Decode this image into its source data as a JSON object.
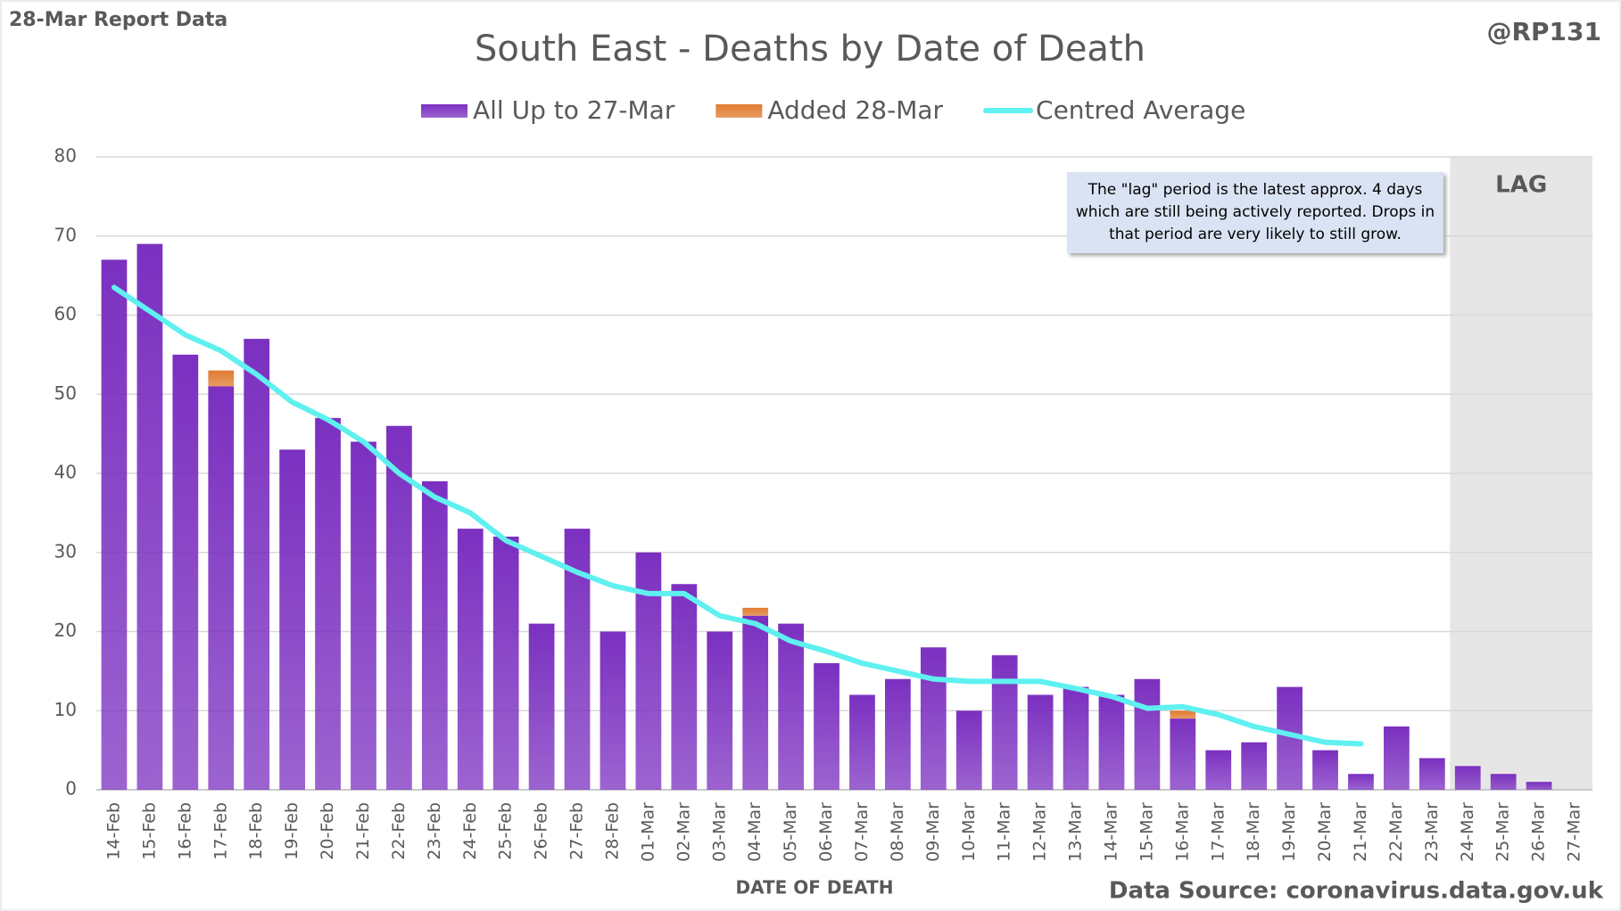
{
  "chart_data": {
    "type": "bar",
    "report_label": "28-Mar Report Data",
    "handle": "@RP131",
    "title": "South East - Deaths by Date of Death",
    "x_label": "DATE OF DEATH",
    "source": "Data Source: coronavirus.data.gov.uk",
    "annotation": "The \"lag\" period is the latest approx. 4 days which are still being actively reported. Drops in that period are very likely to still grow.",
    "lag_label": "LAG",
    "lag_start": "24-Mar",
    "categories": [
      "14-Feb",
      "15-Feb",
      "16-Feb",
      "17-Feb",
      "18-Feb",
      "19-Feb",
      "20-Feb",
      "21-Feb",
      "22-Feb",
      "23-Feb",
      "24-Feb",
      "25-Feb",
      "26-Feb",
      "27-Feb",
      "28-Feb",
      "01-Mar",
      "02-Mar",
      "03-Mar",
      "04-Mar",
      "05-Mar",
      "06-Mar",
      "07-Mar",
      "08-Mar",
      "09-Mar",
      "10-Mar",
      "11-Mar",
      "12-Mar",
      "13-Mar",
      "14-Mar",
      "15-Mar",
      "16-Mar",
      "17-Mar",
      "18-Mar",
      "19-Mar",
      "20-Mar",
      "21-Mar",
      "22-Mar",
      "23-Mar",
      "24-Mar",
      "25-Mar",
      "26-Mar",
      "27-Mar"
    ],
    "series": [
      {
        "name": "All Up to 27-Mar",
        "color": "#7b30c0",
        "values": [
          67,
          69,
          55,
          51,
          57,
          43,
          47,
          44,
          46,
          39,
          33,
          32,
          21,
          33,
          20,
          30,
          26,
          20,
          22,
          21,
          16,
          12,
          14,
          18,
          10,
          17,
          12,
          13,
          12,
          14,
          9,
          5,
          6,
          13,
          5,
          2,
          8,
          4,
          3,
          2,
          1,
          0
        ]
      },
      {
        "name": "Added 28-Mar",
        "color": "#e07b30",
        "values": [
          0,
          0,
          0,
          2,
          0,
          0,
          0,
          0,
          0,
          0,
          0,
          0,
          0,
          0,
          0,
          0,
          0,
          0,
          1,
          0,
          0,
          0,
          0,
          0,
          0,
          0,
          0,
          0,
          0,
          0,
          1,
          0,
          0,
          0,
          0,
          0,
          0,
          0,
          0,
          0,
          0,
          0
        ]
      },
      {
        "name": "Centred Average",
        "type": "line",
        "color": "#5ff0f0",
        "values": [
          63.5,
          60.5,
          57.5,
          55.5,
          52.5,
          49,
          46.8,
          44,
          40,
          37,
          35,
          31.5,
          29.5,
          27.5,
          25.8,
          24.8,
          24.8,
          22,
          21,
          18.8,
          17.5,
          16,
          15,
          14,
          13.7,
          13.7,
          13.7,
          12.8,
          11.8,
          10.3,
          10.5,
          9.5,
          8,
          7,
          6,
          5.8,
          null,
          null,
          null,
          null,
          null,
          null
        ]
      }
    ],
    "ylim": [
      0,
      80
    ],
    "yticks": [
      0,
      10,
      20,
      30,
      40,
      50,
      60,
      70,
      80
    ],
    "grid": true
  }
}
